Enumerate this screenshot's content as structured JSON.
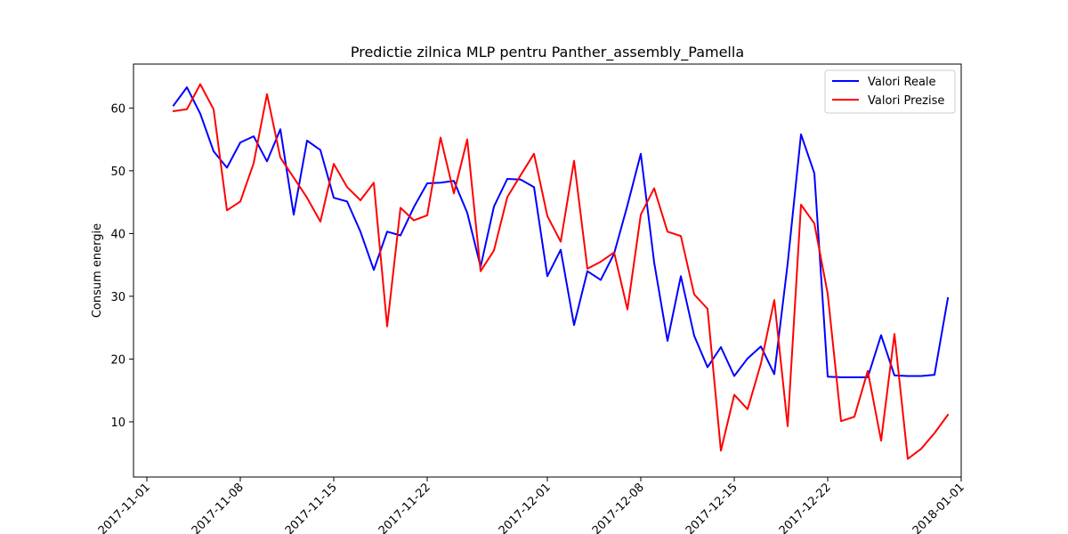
{
  "chart_data": {
    "type": "line",
    "title": "Predictie zilnica MLP pentru Panther_assembly_Pamella",
    "xlabel": "",
    "ylabel": "Consum energie",
    "x_start": "2017-11-03",
    "x_step_days": 1,
    "xlim": [
      "2017-10-31",
      "2018-01-01"
    ],
    "ylim": [
      1.2,
      67
    ],
    "x_ticks": [
      "2017-11-01",
      "2017-11-08",
      "2017-11-15",
      "2017-11-22",
      "2017-12-01",
      "2017-12-08",
      "2017-12-15",
      "2017-12-22",
      "2018-01-01"
    ],
    "y_ticks": [
      10,
      20,
      30,
      40,
      50,
      60
    ],
    "grid": false,
    "legend_position": "top-right",
    "series": [
      {
        "name": "Valori Reale",
        "color": "#0000ff",
        "values": [
          60.4,
          63.3,
          59.1,
          53.1,
          50.5,
          54.5,
          55.5,
          51.5,
          56.6,
          43.0,
          54.8,
          53.3,
          45.7,
          45.1,
          40.3,
          34.2,
          40.3,
          39.7,
          44.2,
          48.0,
          48.1,
          48.4,
          43.3,
          34.7,
          44.3,
          48.7,
          48.6,
          47.4,
          33.2,
          37.4,
          25.4,
          34.0,
          32.6,
          36.8,
          44.5,
          52.7,
          35.4,
          22.9,
          33.2,
          23.7,
          18.7,
          21.9,
          17.3,
          20.1,
          22.0,
          17.6,
          35.2,
          55.8,
          49.6,
          17.2,
          17.1,
          17.1,
          17.1,
          23.8,
          17.4,
          17.3,
          17.3,
          17.5,
          29.7
        ]
      },
      {
        "name": "Valori Prezise",
        "color": "#ff0000",
        "values": [
          59.5,
          59.8,
          63.8,
          59.8,
          43.7,
          45.1,
          51.2,
          62.2,
          52.1,
          48.9,
          45.7,
          41.9,
          51.1,
          47.4,
          45.3,
          48.1,
          25.2,
          44.1,
          42.1,
          42.9,
          55.3,
          46.4,
          55.0,
          34.0,
          37.3,
          45.8,
          49.3,
          52.7,
          42.8,
          38.7,
          51.6,
          34.4,
          35.5,
          37.0,
          27.9,
          43.0,
          47.2,
          40.3,
          39.6,
          30.3,
          28.0,
          5.4,
          14.3,
          12.0,
          19.3,
          29.4,
          9.3,
          44.6,
          41.6,
          30.4,
          10.1,
          10.8,
          18.1,
          7.0,
          24.0,
          4.1,
          5.7,
          8.2,
          11.1
        ]
      }
    ]
  }
}
